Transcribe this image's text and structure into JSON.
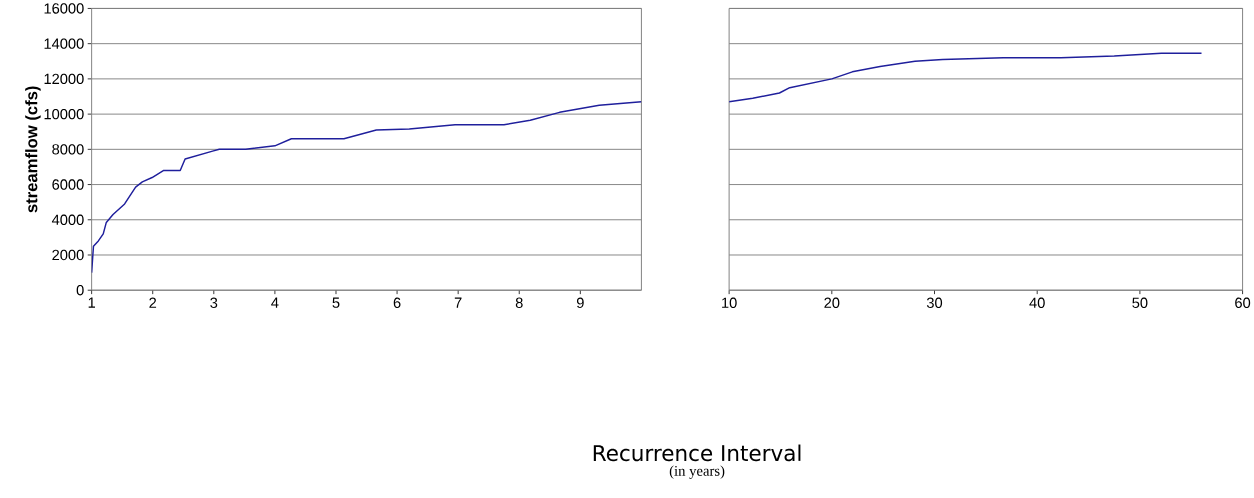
{
  "chart_data": [
    {
      "type": "line",
      "xlabel": "Recurrence Interval",
      "ylabel": "streamflow (cfs)",
      "annotations": [
        "(in years)"
      ],
      "xlim": [
        1,
        10
      ],
      "ylim": [
        0,
        16000
      ],
      "xticks": [
        1,
        2,
        3,
        4,
        5,
        6,
        7,
        8,
        9
      ],
      "yticks": [
        0,
        2000,
        4000,
        6000,
        8000,
        10000,
        12000,
        14000,
        16000
      ],
      "grid": "y",
      "series": [
        {
          "color": "#1f1f9c",
          "x": [
            1.0,
            1.03,
            1.11,
            1.19,
            1.24,
            1.35,
            1.54,
            1.72,
            1.83,
            1.99,
            2.18,
            2.45,
            2.53,
            2.98,
            3.09,
            3.52,
            4.0,
            4.27,
            5.13,
            5.66,
            6.2,
            6.95,
            7.75,
            8.18,
            8.66,
            9.31,
            10.0
          ],
          "values": [
            1000,
            2500,
            2800,
            3200,
            3850,
            4300,
            4900,
            5850,
            6150,
            6400,
            6800,
            6800,
            7450,
            7900,
            8000,
            8000,
            8200,
            8600,
            8600,
            9100,
            9150,
            9400,
            9400,
            9650,
            10100,
            10500,
            10700
          ]
        }
      ]
    },
    {
      "type": "line",
      "xlim": [
        10,
        60
      ],
      "ylim": [
        0,
        16000
      ],
      "xticks": [
        10,
        20,
        30,
        40,
        50,
        60
      ],
      "yticks": [
        0,
        2000,
        4000,
        6000,
        8000,
        10000,
        12000,
        14000,
        16000
      ],
      "grid": "y",
      "tick_labels": "x",
      "series": [
        {
          "color": "#1f1f9c",
          "x": [
            10.0,
            12.3,
            14.9,
            15.9,
            20.0,
            22.0,
            24.7,
            28.1,
            30.8,
            36.7,
            42.3,
            47.5,
            52.1,
            56.0
          ],
          "values": [
            10700,
            10900,
            11200,
            11500,
            12000,
            12400,
            12700,
            13000,
            13100,
            13200,
            13200,
            13300,
            13450,
            13450
          ]
        }
      ]
    }
  ]
}
